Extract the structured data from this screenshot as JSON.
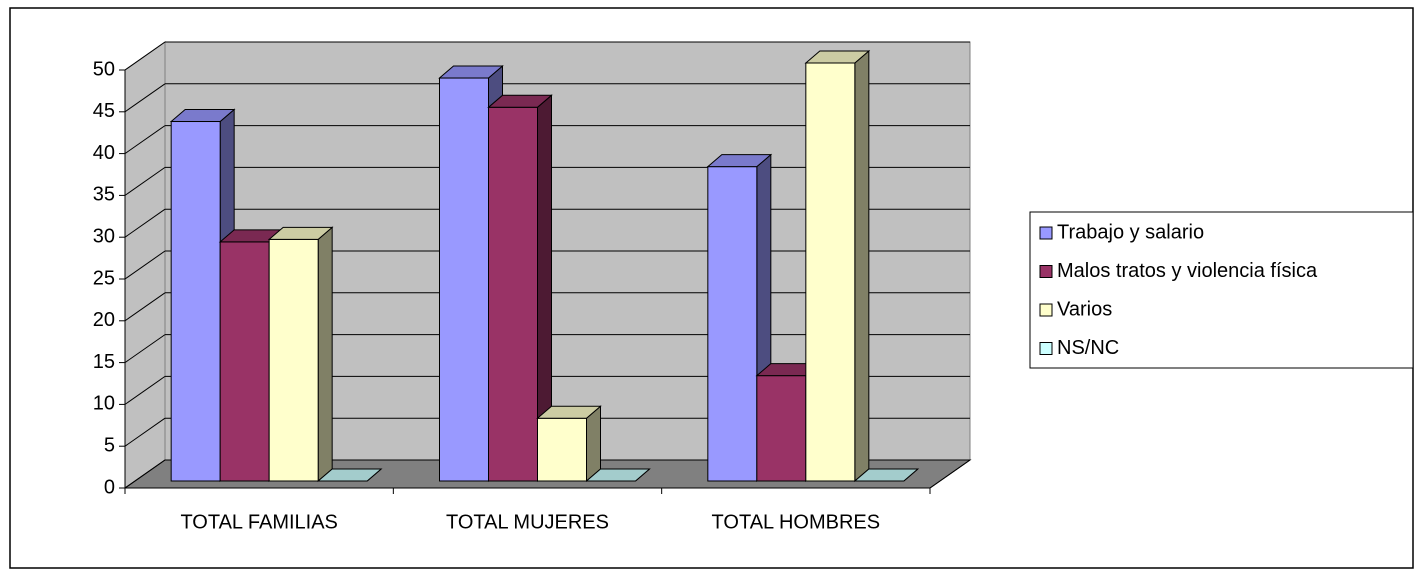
{
  "chart_data": {
    "type": "bar3d",
    "categories": [
      "TOTAL FAMILIAS",
      "TOTAL MUJERES",
      "TOTAL HOMBRES"
    ],
    "series": [
      {
        "name": "Trabajo y salario",
        "color": "#9999ff",
        "values": [
          43,
          48.2,
          37.6
        ]
      },
      {
        "name": "Malos tratos y violencia física",
        "color": "#993366",
        "values": [
          28.6,
          44.7,
          12.6
        ]
      },
      {
        "name": "Varios",
        "color": "#ffffcc",
        "values": [
          28.9,
          7.5,
          50
        ]
      },
      {
        "name": "NS/NC",
        "color": "#ccffff",
        "values": [
          0,
          0,
          0
        ]
      }
    ],
    "ylim": [
      0,
      50
    ],
    "yticks": [
      0,
      5,
      10,
      15,
      20,
      25,
      30,
      35,
      40,
      45,
      50
    ],
    "grid": true,
    "legend": "right"
  }
}
